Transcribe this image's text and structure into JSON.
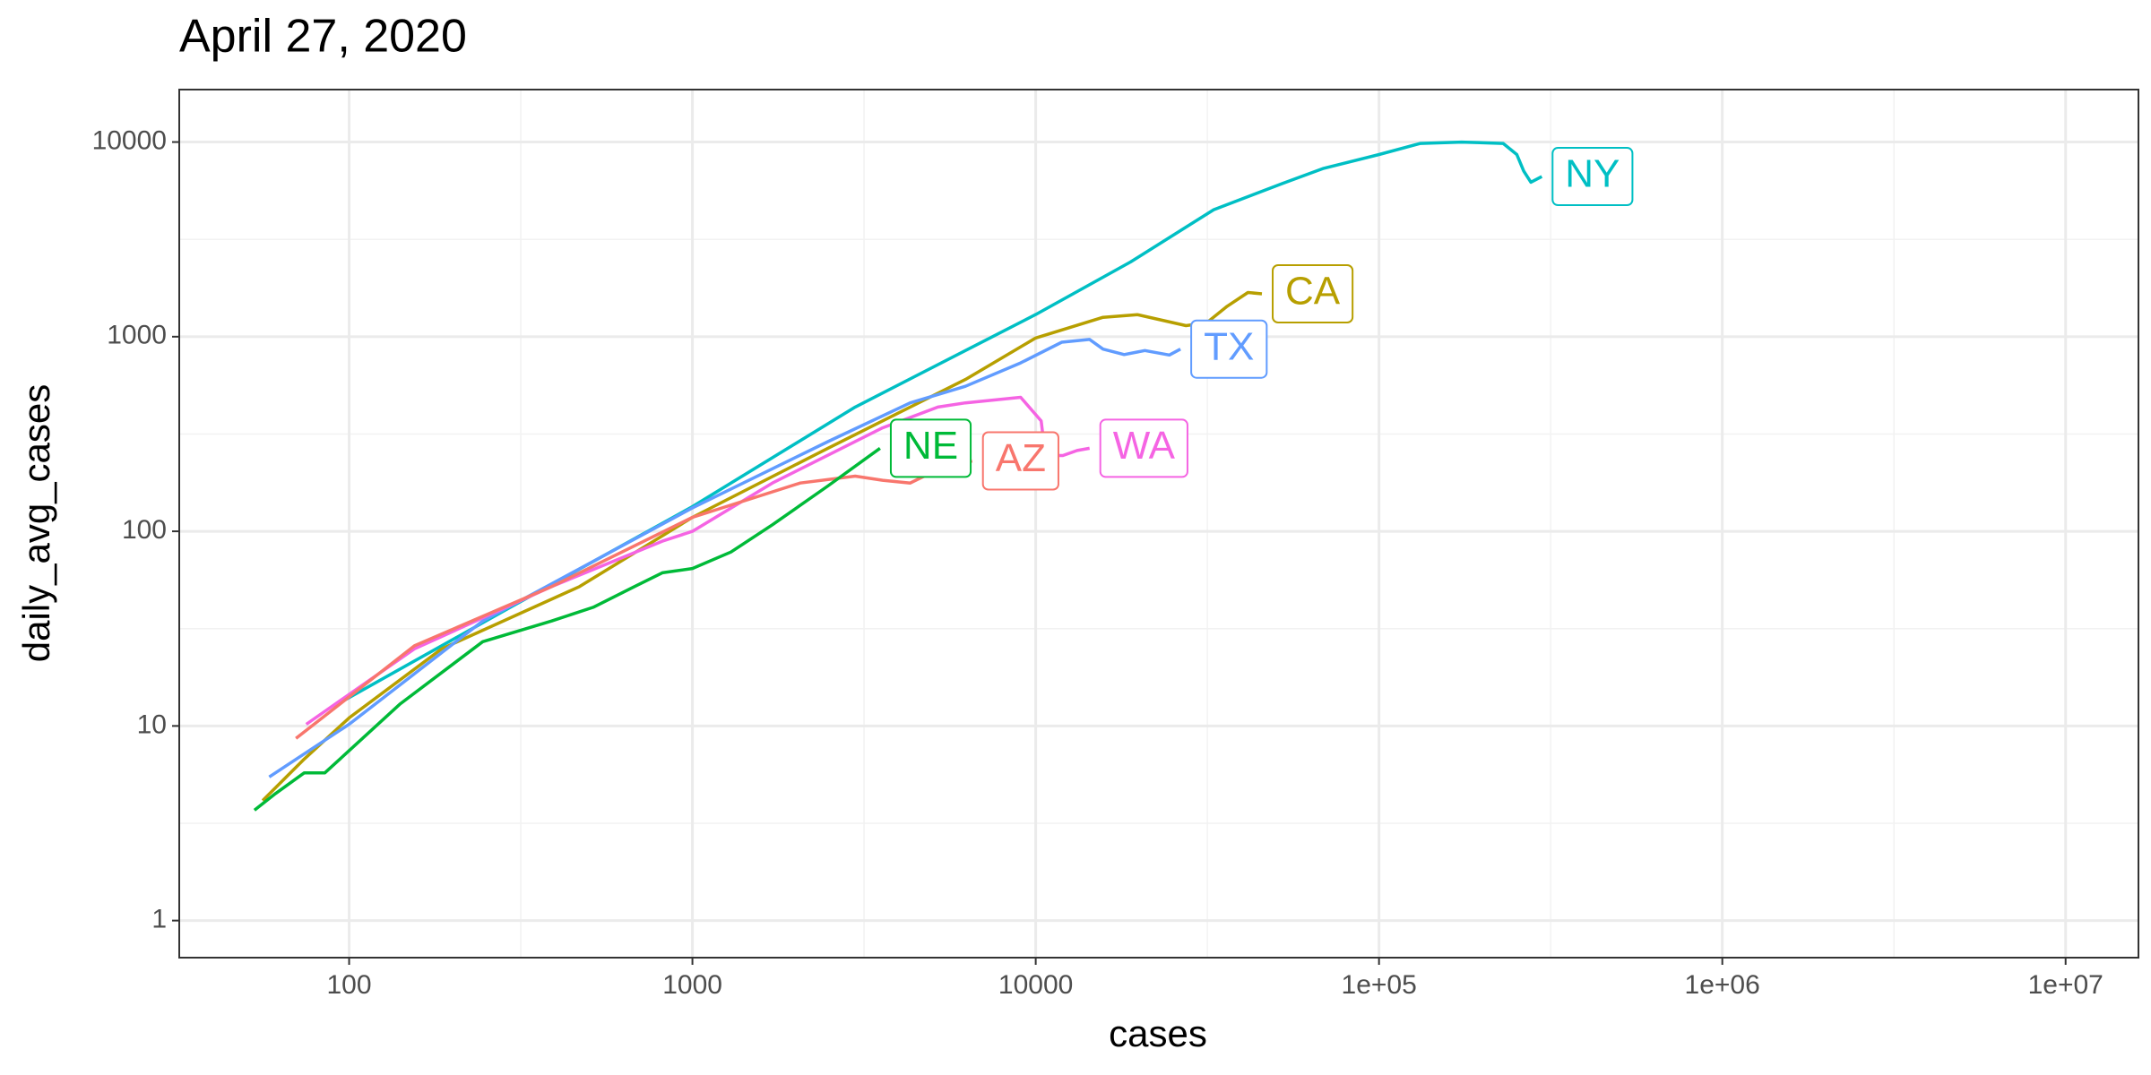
{
  "chart_data": {
    "type": "line",
    "title": "April 27, 2020",
    "x_label": "cases",
    "y_label": "daily_avg_cases",
    "log_x": true,
    "log_y": true,
    "grid": true,
    "xlim": [
      32,
      16300000
    ],
    "ylim": [
      0.645,
      18600
    ],
    "xticks": [
      100,
      1000,
      10000,
      {
        "value": 100000,
        "label": "1e+05"
      },
      {
        "value": 1000000,
        "label": "1e+06"
      },
      {
        "value": 10000000,
        "label": "1e+07"
      }
    ],
    "yticks": [
      1,
      10,
      100,
      1000,
      10000
    ],
    "series": [
      {
        "name": "NY",
        "color": "#00BFC4",
        "x": [
          90,
          295,
          1000,
          2980,
          10000,
          18900,
          33000,
          52400,
          69000,
          100000,
          132000,
          174000,
          230000,
          252000,
          264000,
          277000,
          298000
        ],
        "values": [
          12.6,
          40.7,
          134,
          435,
          1300,
          2420,
          4490,
          6130,
          7330,
          8630,
          9840,
          10000,
          9840,
          8630,
          7100,
          6220,
          6650
        ]
      },
      {
        "name": "CA",
        "color": "#B79F00",
        "x": [
          56,
          74,
          100,
          186,
          469,
          1000,
          2480,
          6240,
          10000,
          15700,
          19800,
          27400,
          31500,
          36100,
          41500,
          45600
        ],
        "values": [
          4.14,
          6.76,
          11,
          24.9,
          52,
          118,
          267,
          603,
          984,
          1257,
          1297,
          1140,
          1180,
          1432,
          1687,
          1660
        ]
      },
      {
        "name": "TX",
        "color": "#619CFF",
        "x": [
          58.5,
          100,
          245,
          1000,
          2480,
          4310,
          6240,
          9040,
          11900,
          14350,
          15700,
          18100,
          20800,
          24500,
          26400
        ],
        "values": [
          5.47,
          10.2,
          34.6,
          132,
          289,
          457,
          556,
          733,
          937,
          968,
          863,
          809,
          849,
          805,
          863
        ]
      },
      {
        "name": "WA",
        "color": "#F564E3",
        "x": [
          75,
          155,
          389,
          817,
          1000,
          1710,
          3580,
          5190,
          6240,
          9040,
          10370,
          10670,
          12000,
          13200,
          14350
        ],
        "values": [
          10.2,
          24.9,
          52,
          89,
          100,
          177,
          340,
          435,
          457,
          488,
          369,
          245,
          245,
          260,
          267
        ]
      },
      {
        "name": "AZ",
        "color": "#F8766D",
        "x": [
          70,
          155,
          389,
          1000,
          2060,
          2980,
          3580,
          4310,
          5190,
          6530
        ],
        "values": [
          8.63,
          25.8,
          52,
          118,
          177,
          192,
          183,
          177,
          208,
          230
        ]
      },
      {
        "name": "NE",
        "color": "#00BA38",
        "x": [
          53,
          61,
          74,
          85,
          141,
          245,
          389,
          514,
          678,
          817,
          1000,
          1295,
          1710,
          2480,
          3520
        ],
        "values": [
          3.69,
          4.49,
          5.74,
          5.74,
          13,
          27.1,
          34.6,
          40.7,
          52,
          61.2,
          64.4,
          78.3,
          108,
          171,
          267
        ]
      }
    ]
  }
}
